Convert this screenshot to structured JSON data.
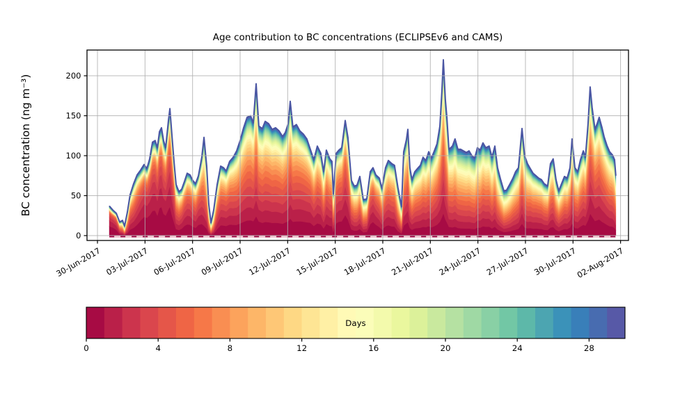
{
  "figure": {
    "title": "Age contribution to BC concentrations (ECLIPSEv6 and CAMS)",
    "y_axis": {
      "label": "BC concentration (ng m⁻³)",
      "ticks": [
        0,
        50,
        100,
        150,
        200
      ],
      "range": [
        -6.1,
        232.2
      ]
    },
    "x_axis": {
      "tick_labels": [
        "30-Jun-2017",
        "03-Jul-2017",
        "06-Jul-2017",
        "09-Jul-2017",
        "12-Jul-2017",
        "15-Jul-2017",
        "18-Jul-2017",
        "21-Jul-2017",
        "24-Jul-2017",
        "27-Jul-2017",
        "30-Jul-2017",
        "02-Aug-2017"
      ],
      "tick_days": [
        0,
        3,
        6,
        9,
        12,
        15,
        18,
        21,
        24,
        27,
        30,
        33
      ],
      "range_days": [
        -0.66,
        33.5
      ]
    },
    "colorbar": {
      "label": "Days",
      "ticks": [
        0,
        4,
        8,
        12,
        16,
        20,
        24,
        28
      ],
      "range": [
        0,
        30
      ],
      "n_bins": 30
    },
    "colors": {
      "spectral_anchors": [
        "#9e0142",
        "#d53e4f",
        "#f46d43",
        "#fdae61",
        "#fee08b",
        "#ffffbf",
        "#e6f598",
        "#abdda4",
        "#66c2a5",
        "#3288bd",
        "#5e4fa2"
      ],
      "grid": "#b0b0b0",
      "spine": "#000000",
      "top_edge_line": "#4a55a3",
      "baseline_strip": "#f3c9d3",
      "baseline_dash": "#9e0142"
    }
  },
  "chart_data": {
    "type": "area",
    "stacked": true,
    "title": "Age contribution to BC concentrations (ECLIPSEv6 and CAMS)",
    "xlabel": "",
    "ylabel": "BC concentration (ng m⁻³)",
    "xlim_days_after_30jun2017": [
      -0.66,
      33.5
    ],
    "ylim": [
      -6.1,
      232.2
    ],
    "x_tick_labels": [
      "30-Jun-2017",
      "03-Jul-2017",
      "06-Jul-2017",
      "09-Jul-2017",
      "12-Jul-2017",
      "15-Jul-2017",
      "18-Jul-2017",
      "21-Jul-2017",
      "24-Jul-2017",
      "27-Jul-2017",
      "30-Jul-2017",
      "02-Aug-2017"
    ],
    "age_colormap": "Spectral, discrete 30 bins, 0-30 days",
    "colorbar_label": "Days",
    "colorbar_ticks": [
      0,
      4,
      8,
      12,
      16,
      20,
      24,
      28
    ],
    "points_columns": [
      "day_offset_from_30jun2017",
      "total_BC_ng_m3",
      "est_mean_plume_age_days"
    ],
    "points": [
      [
        0.75,
        37,
        2
      ],
      [
        0.97,
        32,
        2
      ],
      [
        1.19,
        28,
        2.5
      ],
      [
        1.4,
        17,
        6
      ],
      [
        1.58,
        19,
        10
      ],
      [
        1.71,
        12,
        18
      ],
      [
        1.89,
        30,
        8
      ],
      [
        2.06,
        51,
        5
      ],
      [
        2.28,
        65,
        5
      ],
      [
        2.5,
        76,
        4
      ],
      [
        2.72,
        82,
        3
      ],
      [
        2.94,
        89,
        2.5
      ],
      [
        3.12,
        84,
        2.5
      ],
      [
        3.29,
        96,
        2.5
      ],
      [
        3.47,
        117,
        2.5
      ],
      [
        3.64,
        119,
        2.5
      ],
      [
        3.78,
        110,
        3
      ],
      [
        3.91,
        130,
        2.5
      ],
      [
        4.04,
        135,
        2.5
      ],
      [
        4.17,
        119,
        3
      ],
      [
        4.3,
        110,
        3
      ],
      [
        4.48,
        145,
        3
      ],
      [
        4.57,
        159,
        3
      ],
      [
        4.7,
        125,
        3.5
      ],
      [
        4.83,
        93,
        4
      ],
      [
        4.96,
        64,
        6
      ],
      [
        5.14,
        55,
        6
      ],
      [
        5.31,
        58,
        5
      ],
      [
        5.49,
        68,
        4
      ],
      [
        5.66,
        78,
        4
      ],
      [
        5.84,
        76,
        4
      ],
      [
        6.01,
        69,
        4.5
      ],
      [
        6.19,
        65,
        5
      ],
      [
        6.37,
        75,
        4
      ],
      [
        6.58,
        98,
        5
      ],
      [
        6.72,
        123,
        8
      ],
      [
        6.89,
        87,
        8
      ],
      [
        7.02,
        40,
        12
      ],
      [
        7.16,
        16,
        15
      ],
      [
        7.33,
        32,
        12
      ],
      [
        7.55,
        64,
        6
      ],
      [
        7.77,
        87,
        5
      ],
      [
        7.95,
        85,
        5
      ],
      [
        8.12,
        81,
        5
      ],
      [
        8.34,
        93,
        5
      ],
      [
        8.56,
        98,
        5.5
      ],
      [
        8.78,
        106,
        6
      ],
      [
        9.0,
        119,
        6
      ],
      [
        9.22,
        135,
        6
      ],
      [
        9.44,
        148,
        6
      ],
      [
        9.66,
        150,
        6
      ],
      [
        9.83,
        141,
        6
      ],
      [
        10.01,
        190,
        6
      ],
      [
        10.18,
        137,
        6
      ],
      [
        10.4,
        134,
        6.5
      ],
      [
        10.58,
        143,
        6.5
      ],
      [
        10.8,
        140,
        6.5
      ],
      [
        11.02,
        133,
        6.5
      ],
      [
        11.24,
        135,
        6.5
      ],
      [
        11.46,
        131,
        6.5
      ],
      [
        11.68,
        124,
        6.5
      ],
      [
        11.85,
        129,
        6
      ],
      [
        12.03,
        140,
        6
      ],
      [
        12.16,
        168,
        6
      ],
      [
        12.33,
        136,
        6
      ],
      [
        12.55,
        139,
        6
      ],
      [
        12.77,
        131,
        5.5
      ],
      [
        12.99,
        127,
        5.5
      ],
      [
        13.21,
        121,
        5.5
      ],
      [
        13.43,
        108,
        5
      ],
      [
        13.65,
        95,
        6
      ],
      [
        13.87,
        112,
        5.5
      ],
      [
        14.09,
        103,
        5.5
      ],
      [
        14.27,
        80,
        7
      ],
      [
        14.44,
        107,
        5.5
      ],
      [
        14.66,
        96,
        6
      ],
      [
        14.79,
        93,
        6
      ],
      [
        14.88,
        52,
        9
      ],
      [
        15.06,
        103,
        5
      ],
      [
        15.23,
        107,
        4.5
      ],
      [
        15.41,
        110,
        4.5
      ],
      [
        15.63,
        144,
        4
      ],
      [
        15.8,
        123,
        4.5
      ],
      [
        16.02,
        69,
        7
      ],
      [
        16.2,
        62,
        8
      ],
      [
        16.37,
        63,
        8
      ],
      [
        16.55,
        74,
        7
      ],
      [
        16.77,
        45,
        9
      ],
      [
        16.99,
        46,
        8
      ],
      [
        17.21,
        80,
        4
      ],
      [
        17.38,
        85,
        3.5
      ],
      [
        17.56,
        76,
        4
      ],
      [
        17.78,
        72,
        5
      ],
      [
        17.95,
        59,
        6
      ],
      [
        18.17,
        85,
        5.5
      ],
      [
        18.35,
        94,
        5.5
      ],
      [
        18.57,
        90,
        6
      ],
      [
        18.74,
        88,
        6
      ],
      [
        18.96,
        60,
        9
      ],
      [
        19.18,
        36,
        12
      ],
      [
        19.32,
        105,
        6.5
      ],
      [
        19.49,
        120,
        6
      ],
      [
        19.58,
        133,
        6
      ],
      [
        19.71,
        85,
        7
      ],
      [
        19.84,
        70,
        7.5
      ],
      [
        20.02,
        80,
        7
      ],
      [
        20.19,
        84,
        7
      ],
      [
        20.37,
        88,
        7
      ],
      [
        20.54,
        98,
        7
      ],
      [
        20.72,
        94,
        7
      ],
      [
        20.9,
        105,
        7
      ],
      [
        21.07,
        97,
        7.5
      ],
      [
        21.25,
        106,
        7
      ],
      [
        21.42,
        115,
        6.5
      ],
      [
        21.6,
        137,
        6
      ],
      [
        21.73,
        181,
        6
      ],
      [
        21.82,
        220,
        6
      ],
      [
        21.95,
        170,
        6.5
      ],
      [
        22.04,
        149,
        7
      ],
      [
        22.17,
        108,
        8
      ],
      [
        22.39,
        112,
        9
      ],
      [
        22.56,
        121,
        9
      ],
      [
        22.74,
        108,
        9.5
      ],
      [
        22.91,
        108,
        10
      ],
      [
        23.09,
        106,
        10
      ],
      [
        23.27,
        104,
        10
      ],
      [
        23.44,
        106,
        10
      ],
      [
        23.62,
        100,
        10
      ],
      [
        23.79,
        97,
        10
      ],
      [
        23.97,
        110,
        9
      ],
      [
        24.14,
        107,
        9
      ],
      [
        24.32,
        116,
        8
      ],
      [
        24.5,
        110,
        8
      ],
      [
        24.71,
        112,
        8
      ],
      [
        24.89,
        98,
        9
      ],
      [
        25.07,
        112,
        8
      ],
      [
        25.24,
        85,
        9
      ],
      [
        25.42,
        71,
        10
      ],
      [
        25.64,
        56,
        11
      ],
      [
        25.81,
        57,
        10
      ],
      [
        26.03,
        65,
        10
      ],
      [
        26.21,
        72,
        9
      ],
      [
        26.38,
        80,
        9
      ],
      [
        26.56,
        85,
        8
      ],
      [
        26.78,
        134,
        7
      ],
      [
        26.95,
        100,
        8
      ],
      [
        27.13,
        90,
        8
      ],
      [
        27.3,
        84,
        7
      ],
      [
        27.48,
        78,
        7
      ],
      [
        27.66,
        75,
        6.5
      ],
      [
        27.83,
        72,
        6.5
      ],
      [
        28.01,
        70,
        6.5
      ],
      [
        28.18,
        65,
        7
      ],
      [
        28.4,
        62,
        7
      ],
      [
        28.58,
        90,
        7
      ],
      [
        28.75,
        96,
        7
      ],
      [
        28.93,
        70,
        8
      ],
      [
        29.1,
        56,
        8
      ],
      [
        29.28,
        65,
        7.5
      ],
      [
        29.46,
        74,
        7
      ],
      [
        29.63,
        72,
        7
      ],
      [
        29.81,
        85,
        6.5
      ],
      [
        29.94,
        121,
        6
      ],
      [
        30.12,
        85,
        7
      ],
      [
        30.3,
        80,
        7
      ],
      [
        30.47,
        95,
        6.5
      ],
      [
        30.65,
        106,
        6
      ],
      [
        30.78,
        98,
        6
      ],
      [
        30.95,
        140,
        5.5
      ],
      [
        31.08,
        186,
        5
      ],
      [
        31.21,
        160,
        5
      ],
      [
        31.39,
        133,
        5.5
      ],
      [
        31.52,
        140,
        5.5
      ],
      [
        31.65,
        148,
        5.5
      ],
      [
        31.83,
        135,
        6
      ],
      [
        31.96,
        124,
        6
      ],
      [
        32.14,
        113,
        6.5
      ],
      [
        32.31,
        105,
        7
      ],
      [
        32.49,
        101,
        7
      ],
      [
        32.62,
        95,
        8
      ],
      [
        32.7,
        75,
        9
      ]
    ]
  }
}
